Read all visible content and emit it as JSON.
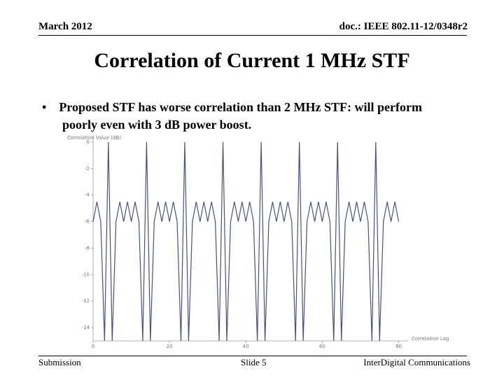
{
  "header": {
    "date": "March 2012",
    "doc": "doc.: IEEE 802.11-12/0348r2"
  },
  "title": "Correlation of Current 1 MHz STF",
  "bullets": [
    "Proposed STF has worse correlation than 2 MHz STF: will perform poorly even with 3 dB power boost."
  ],
  "footer": {
    "left": "Submission",
    "center": "Slide 5",
    "right": "InterDigital Communications"
  },
  "chart_data": {
    "type": "line",
    "y_label": "Correlation Value (dB)",
    "x_label": "Correlation Lag",
    "color": "#4b5080",
    "x": [
      0,
      1,
      2,
      3,
      4,
      5,
      6,
      7,
      8,
      9,
      10,
      11,
      12,
      13,
      14,
      15,
      16,
      17,
      18,
      19,
      20,
      21,
      22,
      23,
      24,
      25,
      26,
      27,
      28,
      29,
      30,
      31,
      32,
      33,
      34,
      35,
      36,
      37,
      38,
      39,
      40,
      41,
      42,
      43,
      44,
      45,
      46,
      47,
      48,
      49,
      50,
      51,
      52,
      53,
      54,
      55,
      56,
      57,
      58,
      59,
      60,
      61,
      62,
      63,
      64,
      65,
      66,
      67,
      68,
      69,
      70,
      71,
      72,
      73,
      74,
      75,
      76,
      77,
      78,
      79,
      80
    ],
    "values": [
      -6,
      -4.5,
      -6,
      -15,
      0,
      -15,
      -6,
      -4.5,
      -6,
      -4.5,
      -6,
      -4.5,
      -6,
      -15,
      0,
      -15,
      -6,
      -4.5,
      -6,
      -4.5,
      -6,
      -4.5,
      -6,
      -15,
      0,
      -15,
      -6,
      -4.5,
      -6,
      -4.5,
      -6,
      -4.5,
      -6,
      -15,
      0,
      -15,
      -6,
      -4.5,
      -6,
      -4.5,
      -6,
      -4.5,
      -6,
      -15,
      0,
      -15,
      -6,
      -4.5,
      -6,
      -4.5,
      -6,
      -4.5,
      -6,
      -15,
      0,
      -15,
      -6,
      -4.5,
      -6,
      -4.5,
      -6,
      -4.5,
      -6,
      -15,
      0,
      -15,
      -6,
      -4.5,
      -6,
      -4.5,
      -6,
      -4.5,
      -6,
      -15,
      0,
      -15,
      -6,
      -4.5,
      -6,
      -4.5,
      -6
    ],
    "xlim": [
      0,
      81
    ],
    "xticks": [
      0,
      20,
      40,
      60,
      80
    ],
    "ylim": [
      -15,
      0.5
    ],
    "yticks": [
      0,
      -2,
      -4,
      -6,
      -8,
      -10,
      -12,
      -14
    ]
  }
}
